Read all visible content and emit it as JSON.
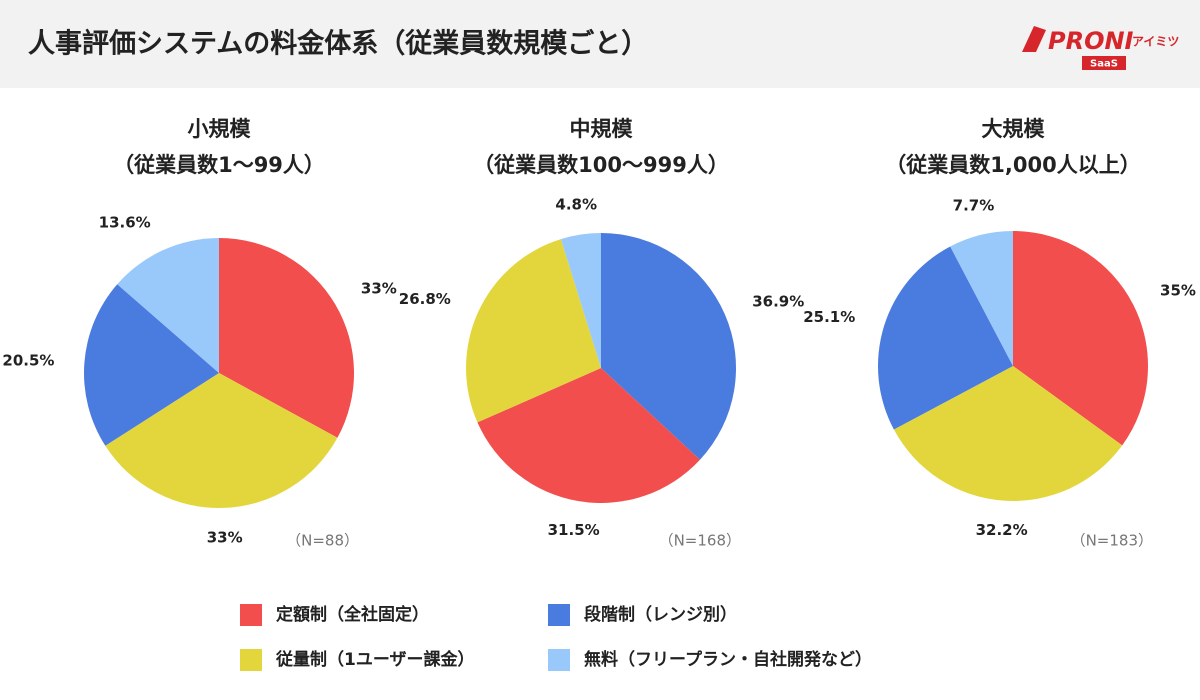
{
  "header": {
    "title": "人事評価システムの料金体系（従業員数規模ごと）",
    "logo": "PRONI",
    "logo_sub": "アイミツ",
    "logo_badge": "SaaS"
  },
  "legend": {
    "items": [
      {
        "name": "定額制（全社固定）",
        "color": "#f24e4e"
      },
      {
        "name": "段階制（レンジ別）",
        "color": "#4a7bdf"
      },
      {
        "name": "従量制（1ユーザー課金）",
        "color": "#e3d63d"
      },
      {
        "name": "無料（フリープラン・自社開発など）",
        "color": "#99c8fb"
      }
    ]
  },
  "chart_data": [
    {
      "type": "pie",
      "title": "小規模",
      "subtitle": "（従業員数1〜99人）",
      "note": "（N=88）",
      "categories": [
        "定額制（全社固定）",
        "従量制（1ユーザー課金）",
        "段階制（レンジ別）",
        "無料（フリープラン・自社開発など）"
      ],
      "values": [
        33,
        33,
        20.5,
        13.6
      ],
      "value_labels": [
        "33%",
        "33%",
        "20.5%",
        "13.6%"
      ]
    },
    {
      "type": "pie",
      "title": "中規模",
      "subtitle": "（従業員数100〜999人）",
      "note": "（N=168）",
      "categories": [
        "段階制（レンジ別）",
        "定額制（全社固定）",
        "従量制（1ユーザー課金）",
        "無料（フリープラン・自社開発など）"
      ],
      "values": [
        36.9,
        31.5,
        26.8,
        4.8
      ],
      "value_labels": [
        "36.9%",
        "31.5%",
        "26.8%",
        "4.8%"
      ]
    },
    {
      "type": "pie",
      "title": "大規模",
      "subtitle": "（従業員数1,000人以上）",
      "note": "（N=183）",
      "categories": [
        "定額制（全社固定）",
        "従量制（1ユーザー課金）",
        "段階制（レンジ別）",
        "無料（フリープラン・自社開発など）"
      ],
      "values": [
        35,
        32.2,
        25.1,
        7.7
      ],
      "value_labels": [
        "35%",
        "32.2%",
        "25.1%",
        "7.7%"
      ]
    }
  ]
}
